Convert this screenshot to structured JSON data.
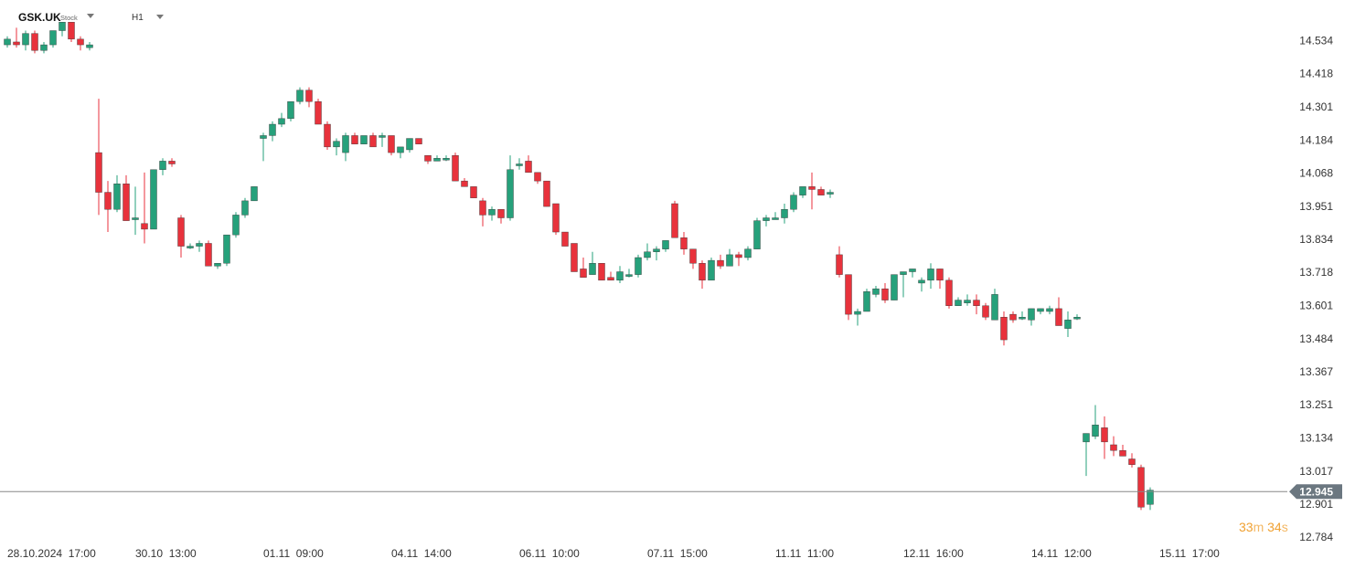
{
  "header": {
    "symbol": "GSK.UK",
    "symbol_type": "Stock",
    "timeframe": "H1"
  },
  "countdown": {
    "minutes": "33",
    "minutes_unit": "m",
    "seconds": "34",
    "seconds_unit": "s"
  },
  "colors": {
    "up": "#26a17b",
    "down": "#e8323c",
    "current_price_line": "#888888",
    "price_badge": "#6b7780"
  },
  "chart_data": {
    "type": "candlestick",
    "ylim": [
      12.73,
      14.62
    ],
    "y_ticks": [
      "14.534",
      "14.418",
      "14.301",
      "14.184",
      "14.068",
      "13.951",
      "13.834",
      "13.718",
      "13.601",
      "13.484",
      "13.367",
      "13.251",
      "13.134",
      "13.017",
      "12.901",
      "12.784"
    ],
    "x_labels": [
      {
        "label": "28.10.2024  17:00",
        "index": 0
      },
      {
        "label": "30.10  13:00",
        "index": 14
      },
      {
        "label": "01.11  09:00",
        "index": 28
      },
      {
        "label": "04.11  14:00",
        "index": 42
      },
      {
        "label": "06.11  10:00",
        "index": 56
      },
      {
        "label": "07.11  15:00",
        "index": 70
      },
      {
        "label": "11.11  11:00",
        "index": 84
      },
      {
        "label": "12.11  16:00",
        "index": 98
      },
      {
        "label": "14.11  12:00",
        "index": 112
      },
      {
        "label": "15.11  17:00",
        "index": 126
      }
    ],
    "current_price": 12.945,
    "current_price_label": "12.945",
    "candles": [
      [
        14.52,
        14.55,
        14.51,
        14.54
      ],
      [
        14.53,
        14.58,
        14.51,
        14.52
      ],
      [
        14.52,
        14.57,
        14.5,
        14.56
      ],
      [
        14.56,
        14.57,
        14.49,
        14.5
      ],
      [
        14.5,
        14.53,
        14.49,
        14.52
      ],
      [
        14.52,
        14.57,
        14.51,
        14.57
      ],
      [
        14.57,
        14.6,
        14.55,
        14.6
      ],
      [
        14.6,
        14.6,
        14.53,
        14.54
      ],
      [
        14.54,
        14.55,
        14.5,
        14.52
      ],
      [
        14.51,
        14.53,
        14.5,
        14.52
      ],
      [
        14.14,
        14.33,
        13.92,
        14.0
      ],
      [
        14.0,
        14.04,
        13.86,
        13.94
      ],
      [
        13.94,
        14.06,
        13.93,
        14.03
      ],
      [
        14.03,
        14.06,
        13.9,
        13.9
      ],
      [
        13.91,
        14.02,
        13.85,
        13.91
      ],
      [
        13.89,
        14.07,
        13.82,
        13.87
      ],
      [
        13.87,
        14.08,
        13.87,
        14.08
      ],
      [
        14.08,
        14.12,
        14.06,
        14.11
      ],
      [
        14.11,
        14.12,
        14.09,
        14.1
      ],
      [
        13.91,
        13.92,
        13.77,
        13.81
      ],
      [
        13.81,
        13.82,
        13.8,
        13.81
      ],
      [
        13.81,
        13.83,
        13.79,
        13.82
      ],
      [
        13.82,
        13.83,
        13.74,
        13.74
      ],
      [
        13.74,
        13.75,
        13.73,
        13.75
      ],
      [
        13.75,
        13.85,
        13.74,
        13.85
      ],
      [
        13.85,
        13.93,
        13.84,
        13.92
      ],
      [
        13.92,
        13.98,
        13.91,
        13.97
      ],
      [
        13.97,
        14.02,
        13.97,
        14.02
      ],
      [
        14.19,
        14.21,
        14.11,
        14.2
      ],
      [
        14.2,
        14.25,
        14.18,
        14.24
      ],
      [
        14.24,
        14.28,
        14.23,
        14.26
      ],
      [
        14.26,
        14.32,
        14.25,
        14.32
      ],
      [
        14.32,
        14.37,
        14.31,
        14.36
      ],
      [
        14.36,
        14.37,
        14.3,
        14.32
      ],
      [
        14.32,
        14.33,
        14.24,
        14.24
      ],
      [
        14.24,
        14.25,
        14.15,
        14.16
      ],
      [
        14.16,
        14.19,
        14.13,
        14.18
      ],
      [
        14.14,
        14.21,
        14.11,
        14.2
      ],
      [
        14.2,
        14.21,
        14.17,
        14.17
      ],
      [
        14.17,
        14.2,
        14.17,
        14.2
      ],
      [
        14.2,
        14.21,
        14.16,
        14.16
      ],
      [
        14.2,
        14.21,
        14.16,
        14.2
      ],
      [
        14.2,
        14.2,
        14.13,
        14.14
      ],
      [
        14.14,
        14.15,
        14.12,
        14.16
      ],
      [
        14.15,
        14.19,
        14.14,
        14.19
      ],
      [
        14.19,
        14.19,
        14.17,
        14.17
      ],
      [
        14.13,
        14.13,
        14.1,
        14.11
      ],
      [
        14.11,
        14.13,
        14.11,
        14.12
      ],
      [
        14.12,
        14.13,
        14.11,
        14.12
      ],
      [
        14.13,
        14.14,
        14.04,
        14.04
      ],
      [
        14.04,
        14.05,
        14.02,
        14.02
      ],
      [
        14.02,
        14.02,
        13.98,
        13.98
      ],
      [
        13.97,
        13.98,
        13.88,
        13.92
      ],
      [
        13.92,
        13.95,
        13.9,
        13.94
      ],
      [
        13.94,
        13.94,
        13.89,
        13.91
      ],
      [
        13.91,
        14.13,
        13.9,
        14.08
      ],
      [
        14.1,
        14.12,
        14.08,
        14.1
      ],
      [
        14.11,
        14.13,
        14.07,
        14.07
      ],
      [
        14.07,
        14.07,
        14.03,
        14.04
      ],
      [
        14.04,
        14.04,
        13.95,
        13.95
      ],
      [
        13.96,
        13.96,
        13.85,
        13.86
      ],
      [
        13.86,
        13.86,
        13.81,
        13.81
      ],
      [
        13.82,
        13.82,
        13.72,
        13.72
      ],
      [
        13.73,
        13.77,
        13.71,
        13.7
      ],
      [
        13.71,
        13.79,
        13.71,
        13.75
      ],
      [
        13.75,
        13.75,
        13.69,
        13.69
      ],
      [
        13.7,
        13.72,
        13.69,
        13.69
      ],
      [
        13.69,
        13.74,
        13.68,
        13.72
      ],
      [
        13.71,
        13.73,
        13.7,
        13.71
      ],
      [
        13.71,
        13.78,
        13.7,
        13.77
      ],
      [
        13.77,
        13.82,
        13.76,
        13.79
      ],
      [
        13.79,
        13.81,
        13.76,
        13.8
      ],
      [
        13.8,
        13.83,
        13.79,
        13.83
      ],
      [
        13.96,
        13.97,
        13.84,
        13.84
      ],
      [
        13.84,
        13.86,
        13.78,
        13.8
      ],
      [
        13.8,
        13.8,
        13.73,
        13.75
      ],
      [
        13.75,
        13.76,
        13.66,
        13.69
      ],
      [
        13.69,
        13.77,
        13.69,
        13.76
      ],
      [
        13.76,
        13.78,
        13.73,
        13.74
      ],
      [
        13.74,
        13.8,
        13.74,
        13.78
      ],
      [
        13.78,
        13.79,
        13.74,
        13.77
      ],
      [
        13.77,
        13.81,
        13.76,
        13.8
      ],
      [
        13.8,
        13.91,
        13.8,
        13.9
      ],
      [
        13.9,
        13.92,
        13.88,
        13.91
      ],
      [
        13.91,
        13.93,
        13.91,
        13.91
      ],
      [
        13.91,
        13.96,
        13.89,
        13.94
      ],
      [
        13.94,
        14.0,
        13.93,
        13.99
      ],
      [
        13.99,
        14.01,
        13.98,
        14.02
      ],
      [
        14.02,
        14.07,
        13.94,
        14.01
      ],
      [
        14.01,
        14.02,
        13.99,
        13.99
      ],
      [
        14.0,
        14.01,
        13.98,
        14.0
      ],
      [
        13.78,
        13.81,
        13.7,
        13.71
      ],
      [
        13.71,
        13.71,
        13.55,
        13.57
      ],
      [
        13.57,
        13.59,
        13.53,
        13.58
      ],
      [
        13.58,
        13.66,
        13.58,
        13.65
      ],
      [
        13.64,
        13.67,
        13.63,
        13.66
      ],
      [
        13.66,
        13.68,
        13.61,
        13.62
      ],
      [
        13.62,
        13.71,
        13.62,
        13.71
      ],
      [
        13.71,
        13.72,
        13.63,
        13.72
      ],
      [
        13.72,
        13.73,
        13.7,
        13.73
      ],
      [
        13.68,
        13.7,
        13.65,
        13.69
      ],
      [
        13.69,
        13.75,
        13.66,
        13.73
      ],
      [
        13.73,
        13.73,
        13.66,
        13.69
      ],
      [
        13.69,
        13.7,
        13.59,
        13.6
      ],
      [
        13.6,
        13.63,
        13.6,
        13.62
      ],
      [
        13.61,
        13.64,
        13.6,
        13.62
      ],
      [
        13.62,
        13.64,
        13.57,
        13.6
      ],
      [
        13.6,
        13.61,
        13.55,
        13.56
      ],
      [
        13.55,
        13.66,
        13.55,
        13.64
      ],
      [
        13.56,
        13.58,
        13.46,
        13.48
      ],
      [
        13.57,
        13.58,
        13.54,
        13.55
      ],
      [
        13.56,
        13.58,
        13.55,
        13.56
      ],
      [
        13.55,
        13.59,
        13.53,
        13.59
      ],
      [
        13.58,
        13.59,
        13.57,
        13.59
      ],
      [
        13.58,
        13.6,
        13.57,
        13.59
      ],
      [
        13.59,
        13.63,
        13.53,
        13.53
      ],
      [
        13.52,
        13.58,
        13.49,
        13.55
      ],
      [
        13.56,
        13.57,
        13.55,
        13.56
      ],
      [
        13.12,
        13.15,
        13.0,
        13.15
      ],
      [
        13.14,
        13.25,
        13.13,
        13.18
      ],
      [
        13.17,
        13.21,
        13.06,
        13.12
      ],
      [
        13.11,
        13.14,
        13.07,
        13.09
      ],
      [
        13.09,
        13.11,
        13.07,
        13.07
      ],
      [
        13.06,
        13.08,
        13.03,
        13.04
      ],
      [
        13.03,
        13.04,
        12.88,
        12.89
      ],
      [
        12.9,
        12.96,
        12.88,
        12.95
      ]
    ]
  }
}
